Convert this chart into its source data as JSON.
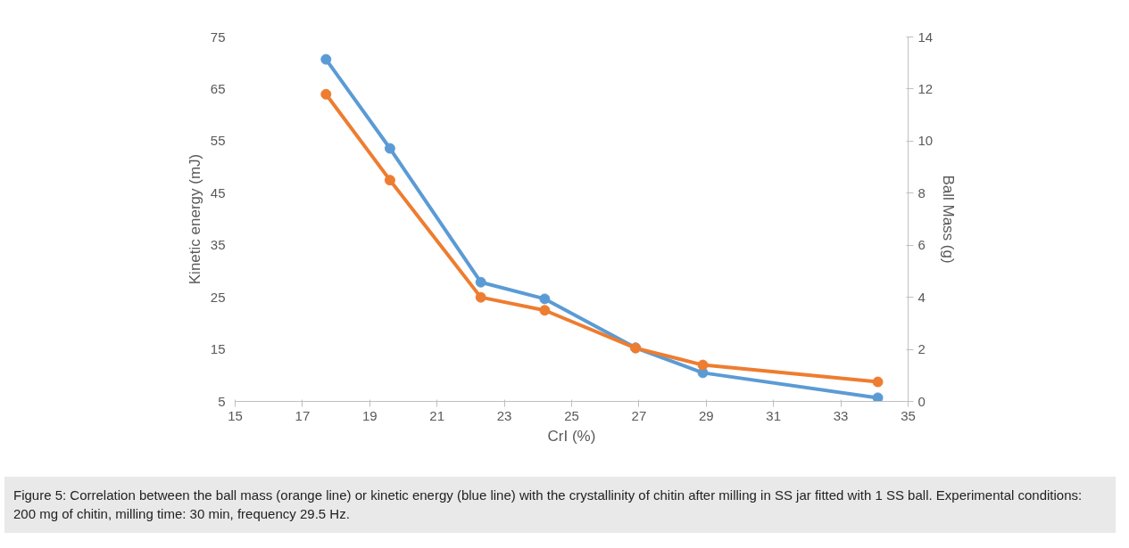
{
  "chart_data": {
    "type": "line",
    "xlabel": "CrI (%)",
    "ylabel": "Kinetic energy (mJ)",
    "y2label": "Ball Mass (g)",
    "xlim": [
      15,
      35
    ],
    "xticks": [
      15,
      17,
      19,
      21,
      23,
      25,
      27,
      29,
      31,
      33,
      35
    ],
    "ylim": [
      5,
      75
    ],
    "yticks": [
      5,
      15,
      25,
      35,
      45,
      55,
      65,
      75
    ],
    "y2lim": [
      0,
      14
    ],
    "y2ticks": [
      0,
      2,
      4,
      6,
      8,
      10,
      12,
      14
    ],
    "x": [
      17.7,
      19.6,
      22.3,
      24.2,
      26.9,
      28.9,
      34.1
    ],
    "series": [
      {
        "color": "#5b9bd5",
        "values": [
          70.7,
          53.6,
          27.9,
          24.7,
          15.3,
          10.5,
          5.7
        ]
      },
      {
        "color": "#ed7d31",
        "axis": "y2",
        "values": [
          11.8,
          8.5,
          4.0,
          3.5,
          2.05,
          1.4,
          0.75
        ]
      }
    ],
    "marker": "circle",
    "line_style": "solid",
    "grid": false,
    "annotations": [
      "Figure 5: Correlation between the ball mass (orange line) or kinetic energy (blue line) with the crystallinity of chitin after milling in SS jar fitted with 1 SS ball. Experimental conditions: 200 mg of chitin, milling time: 30 min, frequency 29.5 Hz."
    ]
  }
}
